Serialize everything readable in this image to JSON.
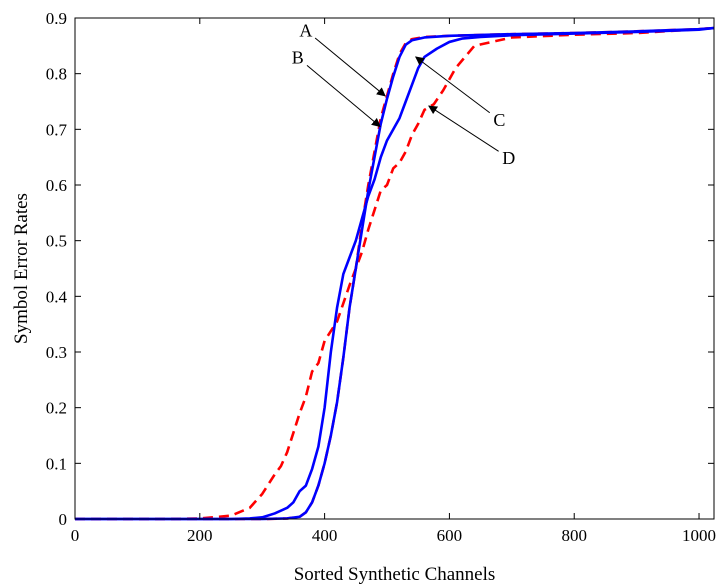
{
  "chart_data": {
    "type": "line",
    "xlabel": "Sorted Synthetic Channels",
    "ylabel": "Symbol Error Rates",
    "xlim": [
      0,
      1024
    ],
    "ylim": [
      0,
      0.9
    ],
    "xticks": [
      0,
      200,
      400,
      600,
      800,
      1000
    ],
    "yticks": [
      0,
      0.1,
      0.2,
      0.3,
      0.4,
      0.5,
      0.6,
      0.7,
      0.8,
      0.9
    ],
    "xtick_labels": [
      "0",
      "200",
      "400",
      "600",
      "800",
      "1000"
    ],
    "ytick_labels": [
      "0",
      "0.1",
      "0.2",
      "0.3",
      "0.4",
      "0.5",
      "0.6",
      "0.7",
      "0.8",
      "0.9"
    ],
    "grid": false,
    "series": [
      {
        "color": "#ff0000",
        "style": "dashed",
        "x": [
          0,
          150,
          200,
          250,
          280,
          300,
          320,
          330,
          340,
          350,
          360,
          370,
          380,
          390,
          400,
          420,
          440,
          460,
          470,
          480,
          490,
          500,
          510,
          520,
          530,
          540,
          550,
          560,
          575,
          590,
          610,
          640,
          700,
          800,
          900,
          1000,
          1024
        ],
        "y": [
          0.0,
          0.0,
          0.001,
          0.006,
          0.02,
          0.045,
          0.08,
          0.095,
          0.12,
          0.155,
          0.19,
          0.22,
          0.265,
          0.28,
          0.32,
          0.355,
          0.42,
          0.48,
          0.52,
          0.555,
          0.59,
          0.6,
          0.63,
          0.64,
          0.66,
          0.69,
          0.71,
          0.735,
          0.745,
          0.77,
          0.81,
          0.85,
          0.865,
          0.87,
          0.873,
          0.88,
          0.882
        ]
      },
      {
        "color": "#ff0000",
        "style": "dashed",
        "x": [
          0,
          300,
          340,
          360,
          370,
          380,
          390,
          400,
          410,
          420,
          430,
          440,
          450,
          460,
          470,
          480,
          490,
          500,
          510,
          520,
          530,
          540,
          560,
          600,
          700,
          800,
          900,
          1000,
          1024
        ],
        "y": [
          0.0,
          0.0,
          0.001,
          0.004,
          0.012,
          0.03,
          0.06,
          0.1,
          0.15,
          0.21,
          0.29,
          0.38,
          0.45,
          0.53,
          0.6,
          0.66,
          0.72,
          0.76,
          0.8,
          0.835,
          0.855,
          0.862,
          0.866,
          0.868,
          0.871,
          0.873,
          0.876,
          0.88,
          0.882
        ]
      },
      {
        "color": "#0000ff",
        "style": "solid",
        "x": [
          0,
          300,
          340,
          360,
          370,
          380,
          390,
          400,
          410,
          420,
          430,
          440,
          450,
          460,
          470,
          480,
          490,
          500,
          510,
          520,
          530,
          540,
          560,
          600,
          700,
          800,
          900,
          1000,
          1024
        ],
        "y": [
          0.0,
          0.0,
          0.001,
          0.004,
          0.012,
          0.03,
          0.06,
          0.1,
          0.15,
          0.21,
          0.29,
          0.38,
          0.45,
          0.52,
          0.59,
          0.65,
          0.71,
          0.755,
          0.795,
          0.83,
          0.852,
          0.86,
          0.865,
          0.868,
          0.871,
          0.873,
          0.876,
          0.88,
          0.882
        ]
      },
      {
        "color": "#0000ff",
        "style": "solid",
        "x": [
          0,
          250,
          280,
          300,
          320,
          340,
          350,
          360,
          370,
          380,
          390,
          400,
          410,
          420,
          430,
          440,
          450,
          460,
          470,
          480,
          490,
          500,
          510,
          520,
          530,
          540,
          550,
          560,
          580,
          600,
          620,
          650,
          700,
          800,
          900,
          1000,
          1024
        ],
        "y": [
          0.0,
          0.0,
          0.001,
          0.003,
          0.01,
          0.02,
          0.03,
          0.05,
          0.06,
          0.09,
          0.13,
          0.2,
          0.3,
          0.38,
          0.44,
          0.47,
          0.5,
          0.54,
          0.58,
          0.61,
          0.65,
          0.68,
          0.7,
          0.72,
          0.75,
          0.78,
          0.81,
          0.83,
          0.845,
          0.857,
          0.863,
          0.866,
          0.869,
          0.872,
          0.875,
          0.879,
          0.882
        ]
      }
    ],
    "annotations": [
      {
        "label": "A",
        "text_at": [
          370,
          0.867
        ],
        "arrow_to": [
          497,
          0.76
        ]
      },
      {
        "label": "B",
        "text_at": [
          357,
          0.818
        ],
        "arrow_to": [
          489,
          0.705
        ]
      },
      {
        "label": "C",
        "text_at": [
          680,
          0.706
        ],
        "arrow_to": [
          546,
          0.83
        ]
      },
      {
        "label": "D",
        "text_at": [
          695,
          0.638
        ],
        "arrow_to": [
          567,
          0.742
        ]
      }
    ]
  }
}
